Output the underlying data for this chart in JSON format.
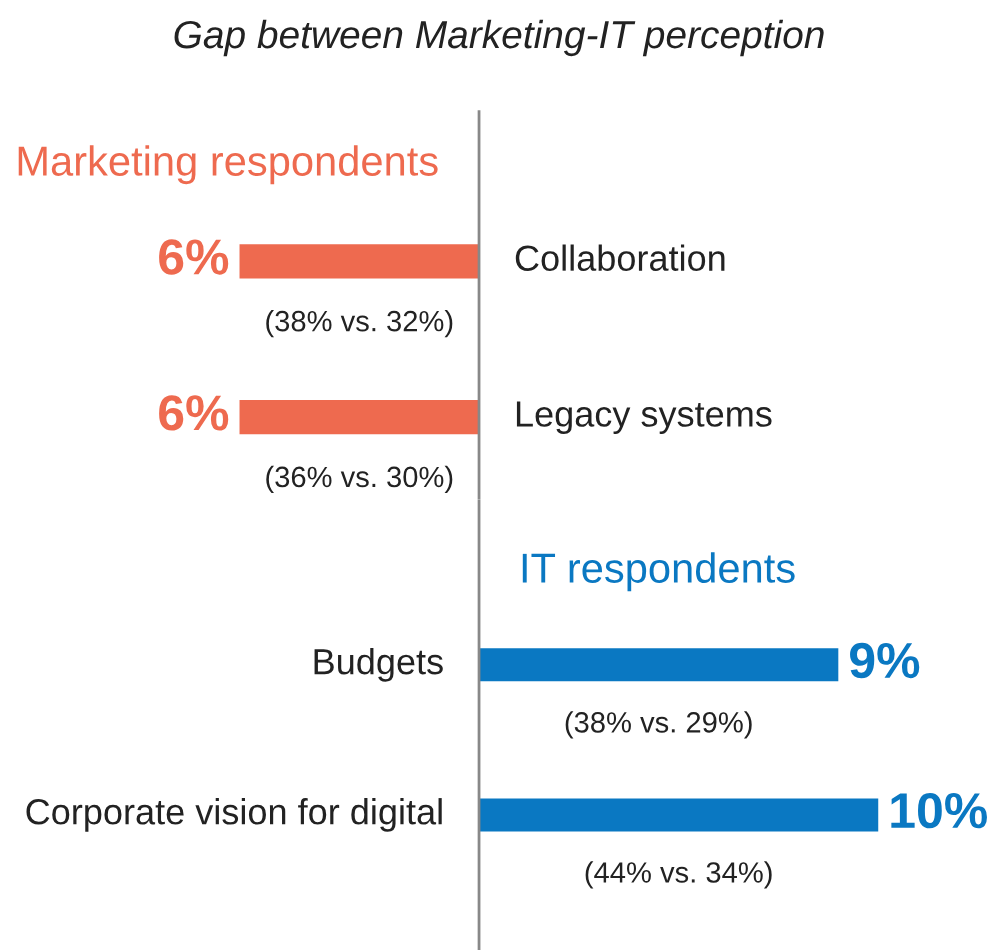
{
  "chart_data": [
    {
      "type": "bar",
      "orientation": "horizontal",
      "title": "Gap between Marketing-IT perception",
      "categories": [
        "Collaboration",
        "Legacy systems"
      ],
      "xlim": [
        12,
        -13
      ],
      "series": [
        {
          "name": "Marketing respondents",
          "color": "#ee6a4f",
          "values": [
            6,
            6
          ],
          "value_labels": [
            "6%",
            "6%"
          ]
        }
      ],
      "annotations": [
        "(38% vs. 32%)",
        "(36% vs. 30%)"
      ]
    },
    {
      "type": "bar",
      "orientation": "horizontal",
      "categories": [
        "Budgets",
        "Corporate vision for digital"
      ],
      "xlim": [
        -12,
        13
      ],
      "series": [
        {
          "name": "IT respondents",
          "color": "#0a78c2",
          "values": [
            9,
            10
          ],
          "value_labels": [
            "9%",
            "10%"
          ]
        }
      ],
      "annotations": [
        "(38% vs. 29%)",
        "(44% vs. 34%)"
      ]
    }
  ]
}
